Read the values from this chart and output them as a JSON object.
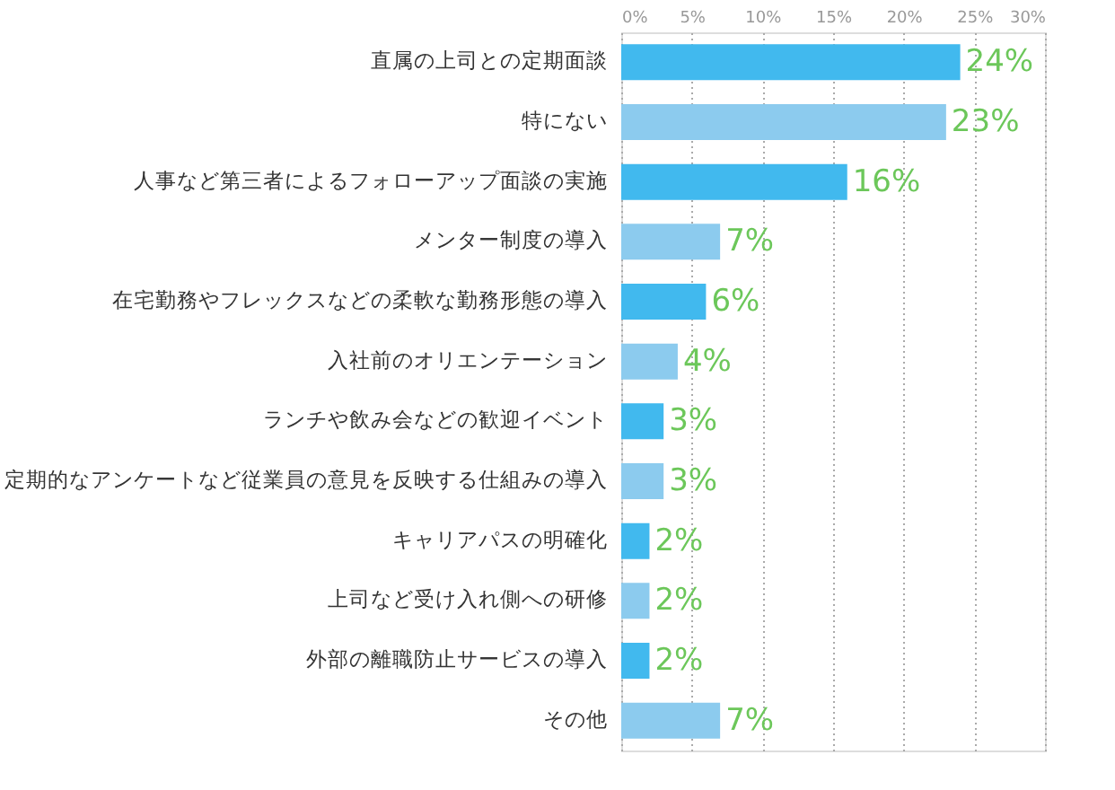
{
  "chart_data": {
    "type": "bar",
    "orientation": "horizontal",
    "categories": [
      "直属の上司との定期面談",
      "特にない",
      "人事など第三者によるフォローアップ面談の実施",
      "メンター制度の導入",
      "在宅勤務やフレックスなどの柔軟な勤務形態の導入",
      "入社前のオリエンテーション",
      "ランチや飲み会などの歓迎イベント",
      "定期的なアンケートなど従業員の意見を反映する仕組みの導入",
      "キャリアパスの明確化",
      "上司など受け入れ側への研修",
      "外部の離職防止サービスの導入",
      "その他"
    ],
    "values": [
      24,
      23,
      16,
      7,
      6,
      4,
      3,
      3,
      2,
      2,
      2,
      7
    ],
    "colors": [
      "#41b9ee",
      "#8ccbee",
      "#41b9ee",
      "#8ccbee",
      "#41b9ee",
      "#8ccbee",
      "#41b9ee",
      "#8ccbee",
      "#41b9ee",
      "#8ccbee",
      "#41b9ee",
      "#8ccbee"
    ],
    "value_labels": [
      "24%",
      "23%",
      "16%",
      "7%",
      "6%",
      "4%",
      "3%",
      "3%",
      "2%",
      "2%",
      "2%",
      "7%"
    ],
    "xlim": [
      0,
      30
    ],
    "xticks": [
      {
        "value": 0,
        "label": "0%"
      },
      {
        "value": 5,
        "label": "5%"
      },
      {
        "value": 10,
        "label": "10%"
      },
      {
        "value": 15,
        "label": "15%"
      },
      {
        "value": 20,
        "label": "20%"
      },
      {
        "value": 25,
        "label": "25%"
      },
      {
        "value": 30,
        "label": "30%"
      }
    ],
    "grid": "x"
  }
}
